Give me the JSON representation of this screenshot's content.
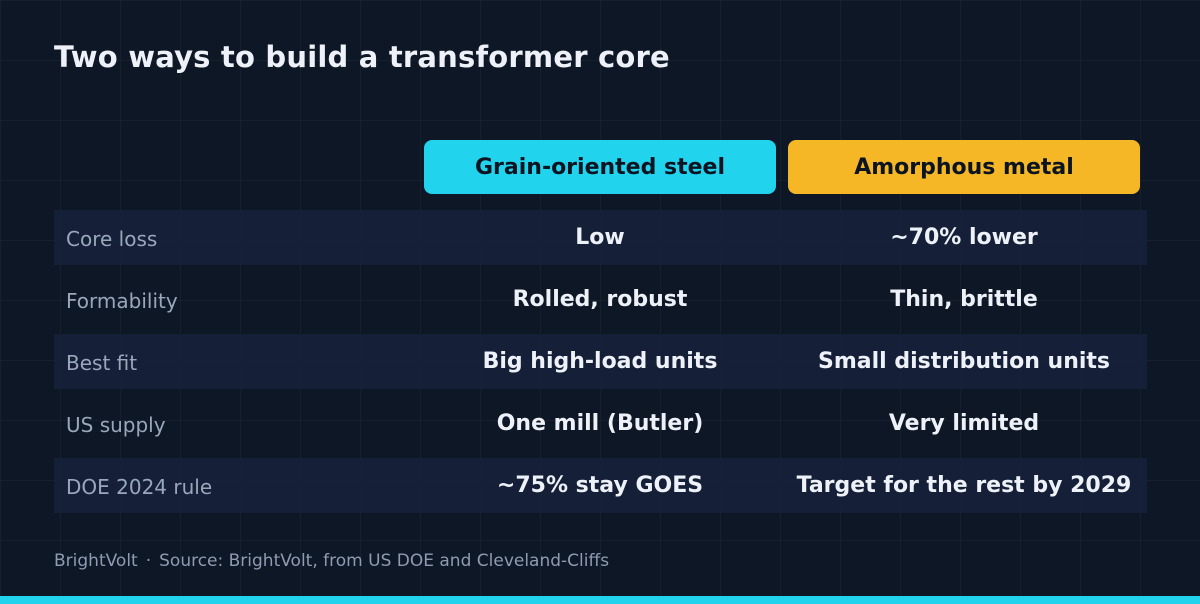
{
  "title": "Two ways to build a transformer core",
  "columns": [
    {
      "label": "Grain-oriented steel",
      "color": "#22d3ee"
    },
    {
      "label": "Amorphous metal",
      "color": "#f5b726"
    }
  ],
  "rows": [
    {
      "label": "Core loss",
      "goes": "Low",
      "amorphous": "~70% lower"
    },
    {
      "label": "Formability",
      "goes": "Rolled, robust",
      "amorphous": "Thin, brittle"
    },
    {
      "label": "Best fit",
      "goes": "Big high-load units",
      "amorphous": "Small distribution units"
    },
    {
      "label": "US supply",
      "goes": "One mill (Butler)",
      "amorphous": "Very limited"
    },
    {
      "label": "DOE 2024 rule",
      "goes": "~75% stay GOES",
      "amorphous": "Target for the rest by 2029"
    }
  ],
  "footer": {
    "brand": "BrightVolt",
    "separator": "·",
    "source": "Source: BrightVolt, from US DOE and Cleveland-Cliffs"
  },
  "colors": {
    "background": "#0e1726",
    "row_shade": "#16223a",
    "accent_bar": "#22d3ee"
  }
}
